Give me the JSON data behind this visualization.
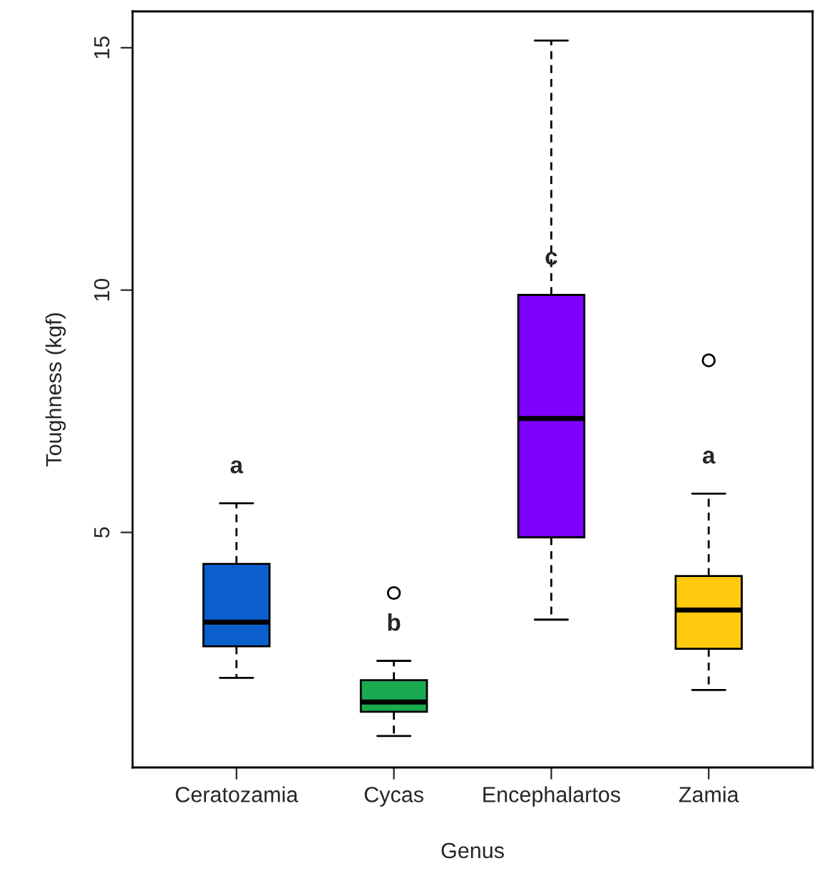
{
  "chart_data": {
    "type": "box",
    "xlabel": "Genus",
    "ylabel": "Toughness (kgf)",
    "categories": [
      "Ceratozamia",
      "Cycas",
      "Encephalartos",
      "Zamia"
    ],
    "colors": [
      "#0a5fcc",
      "#1aaa50",
      "#7f00ff",
      "#ffc90e"
    ],
    "boxes": [
      {
        "low": 2.0,
        "q1": 2.65,
        "median": 3.15,
        "q3": 4.35,
        "high": 5.6
      },
      {
        "low": 0.8,
        "q1": 1.3,
        "median": 1.5,
        "q3": 1.95,
        "high": 2.35,
        "outliers": [
          3.75
        ]
      },
      {
        "low": 3.2,
        "q1": 4.9,
        "median": 7.35,
        "q3": 9.9,
        "high": 15.15
      },
      {
        "low": 1.75,
        "q1": 2.6,
        "median": 3.4,
        "q3": 4.1,
        "high": 5.8,
        "outliers": [
          8.55
        ]
      }
    ],
    "ylim": [
      0.15,
      15.75
    ],
    "yticks": [
      5,
      10,
      15
    ],
    "grid": false,
    "annotations": [
      "a",
      "b",
      "c",
      "a"
    ]
  }
}
